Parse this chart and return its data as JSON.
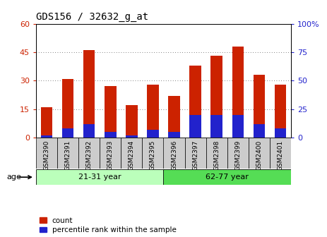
{
  "title": "GDS156 / 32632_g_at",
  "samples": [
    "GSM2390",
    "GSM2391",
    "GSM2392",
    "GSM2393",
    "GSM2394",
    "GSM2395",
    "GSM2396",
    "GSM2397",
    "GSM2398",
    "GSM2399",
    "GSM2400",
    "GSM2401"
  ],
  "counts": [
    16,
    31,
    46,
    27,
    17,
    28,
    22,
    38,
    43,
    48,
    33,
    28
  ],
  "percentiles": [
    2,
    8,
    12,
    5,
    2,
    7,
    5,
    20,
    20,
    20,
    12,
    8
  ],
  "bar_color": "#cc2200",
  "pct_color": "#2222cc",
  "left_ylim": [
    0,
    60
  ],
  "right_ylim": [
    0,
    100
  ],
  "left_yticks": [
    0,
    15,
    30,
    45,
    60
  ],
  "right_yticks": [
    0,
    25,
    50,
    75,
    100
  ],
  "right_yticklabels": [
    "0",
    "25",
    "50",
    "75",
    "100%"
  ],
  "age_groups": [
    {
      "label": "21-31 year",
      "start": 0,
      "end": 6,
      "color": "#bbffbb"
    },
    {
      "label": "62-77 year",
      "start": 6,
      "end": 12,
      "color": "#55dd55"
    }
  ],
  "age_label": "age",
  "legend_count_label": "count",
  "legend_pct_label": "percentile rank within the sample",
  "bar_width": 0.55,
  "grid_color": "#555555",
  "xtick_bg": "#cccccc"
}
